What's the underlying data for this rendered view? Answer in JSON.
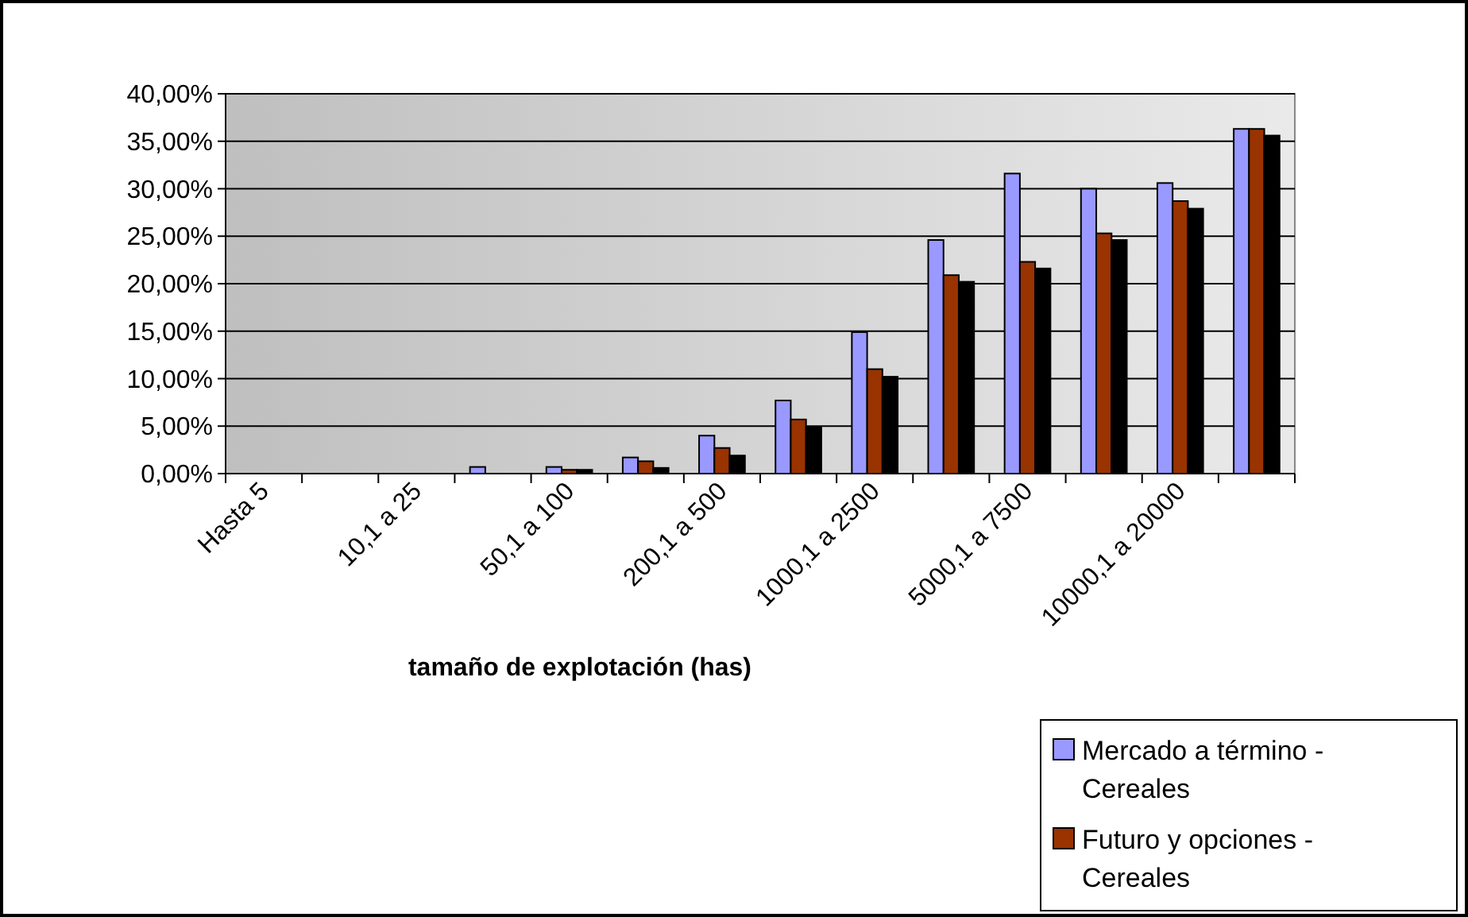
{
  "chart_data": {
    "type": "bar",
    "xlabel": "tamaño de explotación (has)",
    "categories": [
      "Hasta 5",
      null,
      "10,1 a 25",
      null,
      "50,1 a 100",
      null,
      "200,1 a 500",
      null,
      "1000,1 a 2500",
      null,
      "5000,1 a 7500",
      null,
      "10000,1 a 20000",
      null
    ],
    "series": [
      {
        "name": "Mercado a término - Cereales",
        "color": "#9999ff",
        "values": [
          0,
          0,
          0,
          0.7,
          0.7,
          1.7,
          4.0,
          7.7,
          14.9,
          24.6,
          31.6,
          30.0,
          30.6,
          36.3
        ]
      },
      {
        "name": "Futuro y opciones - Cereales",
        "color": "#993300",
        "values": [
          0,
          0,
          0,
          0,
          0.4,
          1.3,
          2.7,
          5.7,
          11.0,
          20.9,
          22.3,
          25.3,
          28.7,
          36.3
        ]
      },
      {
        "color": "#000000",
        "values": [
          0,
          0,
          0,
          0,
          0.4,
          0.6,
          1.9,
          4.9,
          10.2,
          20.2,
          21.6,
          24.6,
          27.9,
          35.6
        ]
      }
    ],
    "ylim": [
      0,
      40
    ],
    "yticks": [
      {
        "value": 0,
        "label": "0,00%"
      },
      {
        "value": 5,
        "label": "5,00%"
      },
      {
        "value": 10,
        "label": "10,00%"
      },
      {
        "value": 15,
        "label": "15,00%"
      },
      {
        "value": 20,
        "label": "20,00%"
      },
      {
        "value": 25,
        "label": "25,00%"
      },
      {
        "value": 30,
        "label": "30,00%"
      },
      {
        "value": 35,
        "label": "35,00%"
      },
      {
        "value": 40,
        "label": "40,00%"
      }
    ],
    "grid": "y",
    "legend": "bottom right"
  }
}
